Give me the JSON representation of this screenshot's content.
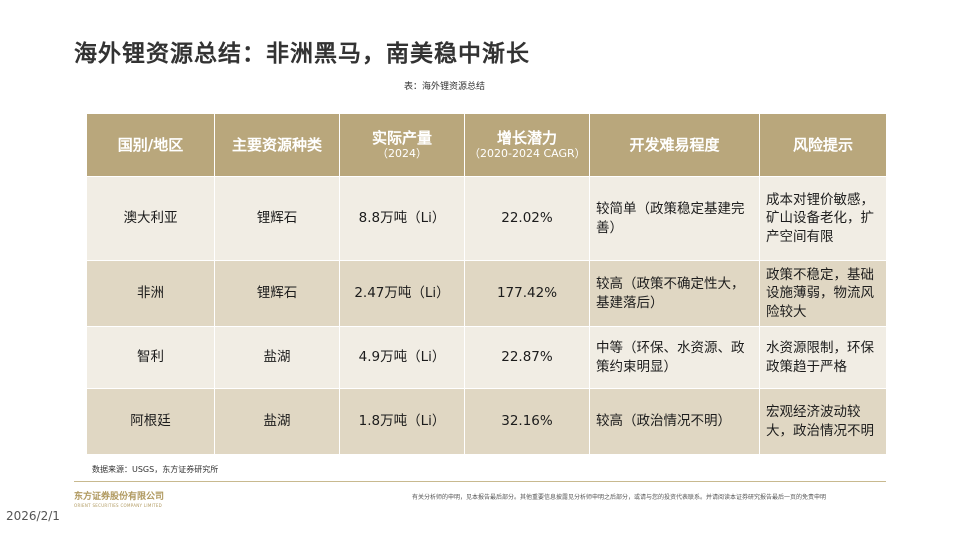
{
  "slide": {
    "title": "海外锂资源总结：非洲黑马，南美稳中渐长",
    "caption": "表：海外锂资源总结",
    "source": "数据来源：USGS，东方证券研究所"
  },
  "table": {
    "headers": [
      {
        "main": "国别/地区",
        "sub": ""
      },
      {
        "main": "主要资源种类",
        "sub": ""
      },
      {
        "main": "实际产量",
        "sub": "（2024）"
      },
      {
        "main": "增长潜力",
        "sub": "（2020-2024 CAGR）"
      },
      {
        "main": "开发难易程度",
        "sub": ""
      },
      {
        "main": "风险提示",
        "sub": ""
      }
    ],
    "rows": [
      {
        "region": "澳大利亚",
        "type": "锂辉石",
        "output": "8.8万吨（Li）",
        "cagr": "22.02%",
        "difficulty": "较简单（政策稳定基建完善）",
        "risk": "成本对锂价敏感，矿山设备老化，扩产空间有限"
      },
      {
        "region": "非洲",
        "type": "锂辉石",
        "output": "2.47万吨（Li）",
        "cagr": "177.42%",
        "difficulty": "较高（政策不确定性大，基建落后）",
        "risk": "政策不稳定，基础设施薄弱，物流风险较大"
      },
      {
        "region": "智利",
        "type": "盐湖",
        "output": "4.9万吨（Li）",
        "cagr": "22.87%",
        "difficulty": "中等（环保、水资源、政策约束明显）",
        "risk": "水资源限制，环保政策趋于严格"
      },
      {
        "region": "阿根廷",
        "type": "盐湖",
        "output": "1.8万吨（Li）",
        "cagr": "32.16%",
        "difficulty": "较高（政治情况不明）",
        "risk": "宏观经济波动较大，政治情况不明"
      }
    ]
  },
  "footer": {
    "company_cn": "东方证券股份有限公司",
    "company_en": "ORIENT SECURITIES COMPANY LIMITED",
    "disclaimer": "有关分析师的申明，见本报告最后部分。其他重要信息披露见分析师申明之后部分，或请与您的投资代表联系。并请阅读本证券研究报告最后一页的免责申明",
    "date": "2026/2/1"
  },
  "colors": {
    "header_bg": "#b9a77c",
    "row_light": "#f1ede4",
    "row_dark": "#e0d7c3",
    "accent_gold": "#b0995f"
  }
}
